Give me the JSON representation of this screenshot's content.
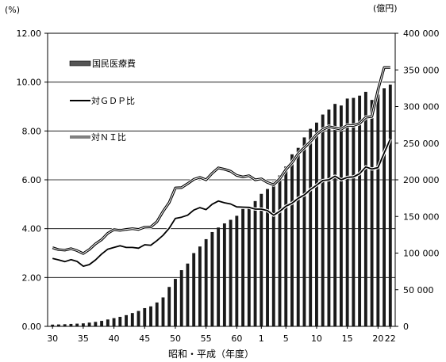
{
  "chart_data": {
    "type": "bar",
    "left_axis_unit": "(%)",
    "right_axis_unit": "(億円)",
    "xlabel": "昭和・平成（年度）",
    "left_ticks": [
      "0.00",
      "2.00",
      "4.00",
      "6.00",
      "8.00",
      "10.00",
      "12.00"
    ],
    "left_ylim": [
      0,
      12
    ],
    "right_ticks": [
      "0",
      "50 000",
      "100 000",
      "150 000",
      "200 000",
      "250 000",
      "300 000",
      "350 000",
      "400 000"
    ],
    "right_ylim": [
      0,
      400000
    ],
    "x_tick_labels": [
      {
        "label": "30",
        "index": 0
      },
      {
        "label": "35",
        "index": 5
      },
      {
        "label": "40",
        "index": 10
      },
      {
        "label": "45",
        "index": 15
      },
      {
        "label": "50",
        "index": 20
      },
      {
        "label": "55",
        "index": 25
      },
      {
        "label": "60",
        "index": 30
      },
      {
        "label": "1",
        "index": 34
      },
      {
        "label": "5",
        "index": 38
      },
      {
        "label": "10",
        "index": 43
      },
      {
        "label": "15",
        "index": 48
      },
      {
        "label": "20",
        "index": 53
      },
      {
        "label": "22",
        "index": 55
      }
    ],
    "grid": "horizontal",
    "legend_position": "top-left",
    "series": [
      {
        "name": "国民医療費",
        "axis": "right",
        "mark": "bar",
        "values": [
          2388,
          2600,
          2900,
          3300,
          3700,
          4100,
          5100,
          6100,
          7500,
          9400,
          11200,
          13000,
          15300,
          18200,
          21000,
          24900,
          27300,
          32600,
          39500,
          53800,
          64800,
          76700,
          85700,
          100000,
          109000,
          119000,
          128700,
          134900,
          140500,
          145400,
          150900,
          160200,
          163100,
          171000,
          180800,
          187500,
          197300,
          206100,
          218300,
          234800,
          243600,
          257900,
          269600,
          278100,
          289100,
          295800,
          303600,
          301400,
          310900,
          311800,
          314900,
          320100,
          309000,
          316400,
          325000,
          330000
        ]
      },
      {
        "name": "対ＧＤＰ比",
        "axis": "left",
        "mark": "line",
        "values": [
          2.78,
          2.72,
          2.65,
          2.73,
          2.66,
          2.46,
          2.53,
          2.72,
          2.96,
          3.16,
          3.23,
          3.3,
          3.23,
          3.23,
          3.2,
          3.34,
          3.32,
          3.51,
          3.73,
          4.02,
          4.42,
          4.47,
          4.55,
          4.76,
          4.86,
          4.78,
          5.0,
          5.13,
          5.06,
          5.01,
          4.89,
          4.88,
          4.87,
          4.8,
          4.8,
          4.74,
          4.55,
          4.71,
          4.92,
          5.04,
          5.24,
          5.38,
          5.6,
          5.78,
          5.97,
          6.0,
          6.15,
          6.0,
          6.1,
          6.12,
          6.25,
          6.53,
          6.44,
          6.5,
          7.1,
          7.67
        ]
      },
      {
        "name": "対ＮＩ比",
        "axis": "left",
        "mark": "line",
        "values": [
          3.22,
          3.14,
          3.12,
          3.18,
          3.1,
          2.98,
          3.15,
          3.38,
          3.55,
          3.81,
          3.96,
          3.93,
          3.97,
          4.0,
          3.97,
          4.06,
          4.07,
          4.28,
          4.71,
          5.07,
          5.67,
          5.68,
          5.84,
          6.02,
          6.1,
          6.0,
          6.27,
          6.49,
          6.43,
          6.35,
          6.18,
          6.12,
          6.17,
          6.0,
          6.04,
          5.89,
          5.8,
          6.04,
          6.42,
          6.7,
          7.07,
          7.32,
          7.56,
          7.86,
          8.06,
          8.18,
          8.12,
          8.07,
          8.23,
          8.22,
          8.31,
          8.56,
          8.59,
          9.68,
          10.6,
          10.6
        ]
      }
    ]
  }
}
